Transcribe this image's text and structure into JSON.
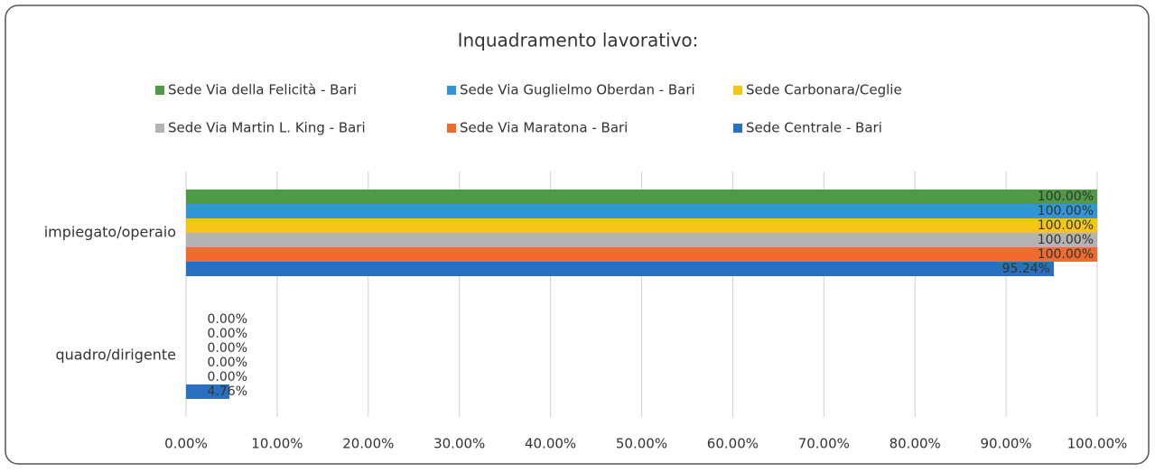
{
  "chart_data": {
    "type": "bar",
    "orientation": "horizontal",
    "title": "Inquadramento lavorativo:",
    "categories": [
      "impiegato/operaio",
      "quadro/dirigente"
    ],
    "series": [
      {
        "name": "Sede Via della Felicità - Bari",
        "color": "#4e9a45",
        "values": [
          100,
          0
        ],
        "value_labels": [
          "100.00%",
          "0.00%"
        ]
      },
      {
        "name": "Sede Via Guglielmo Oberdan - Bari",
        "color": "#2e96d9",
        "values": [
          100,
          0
        ],
        "value_labels": [
          "100.00%",
          "0.00%"
        ]
      },
      {
        "name": "Sede Carbonara/Ceglie",
        "color": "#f5c518",
        "values": [
          100,
          0
        ],
        "value_labels": [
          "100.00%",
          "0.00%"
        ]
      },
      {
        "name": "Sede Via Martin L. King - Bari",
        "color": "#b3b3b3",
        "values": [
          100,
          0
        ],
        "value_labels": [
          "100.00%",
          "0.00%"
        ]
      },
      {
        "name": "Sede Via Maratona - Bari",
        "color": "#f26a2e",
        "values": [
          100,
          0
        ],
        "value_labels": [
          "100.00%",
          "0.00%"
        ]
      },
      {
        "name": "Sede Centrale - Bari",
        "color": "#2a6fc0",
        "values": [
          95.24,
          4.76
        ],
        "value_labels": [
          "95.24%",
          "4.76%"
        ]
      }
    ],
    "xlim": [
      0,
      100
    ],
    "xticks": [
      {
        "value": 0,
        "label": "0.00%"
      },
      {
        "value": 10,
        "label": "10.00%"
      },
      {
        "value": 20,
        "label": "20.00%"
      },
      {
        "value": 30,
        "label": "30.00%"
      },
      {
        "value": 40,
        "label": "40.00%"
      },
      {
        "value": 50,
        "label": "50.00%"
      },
      {
        "value": 60,
        "label": "60.00%"
      },
      {
        "value": 70,
        "label": "70.00%"
      },
      {
        "value": 80,
        "label": "80.00%"
      },
      {
        "value": 90,
        "label": "90.00%"
      },
      {
        "value": 100,
        "label": "100.00%"
      }
    ],
    "grid": true,
    "legend": "top"
  }
}
